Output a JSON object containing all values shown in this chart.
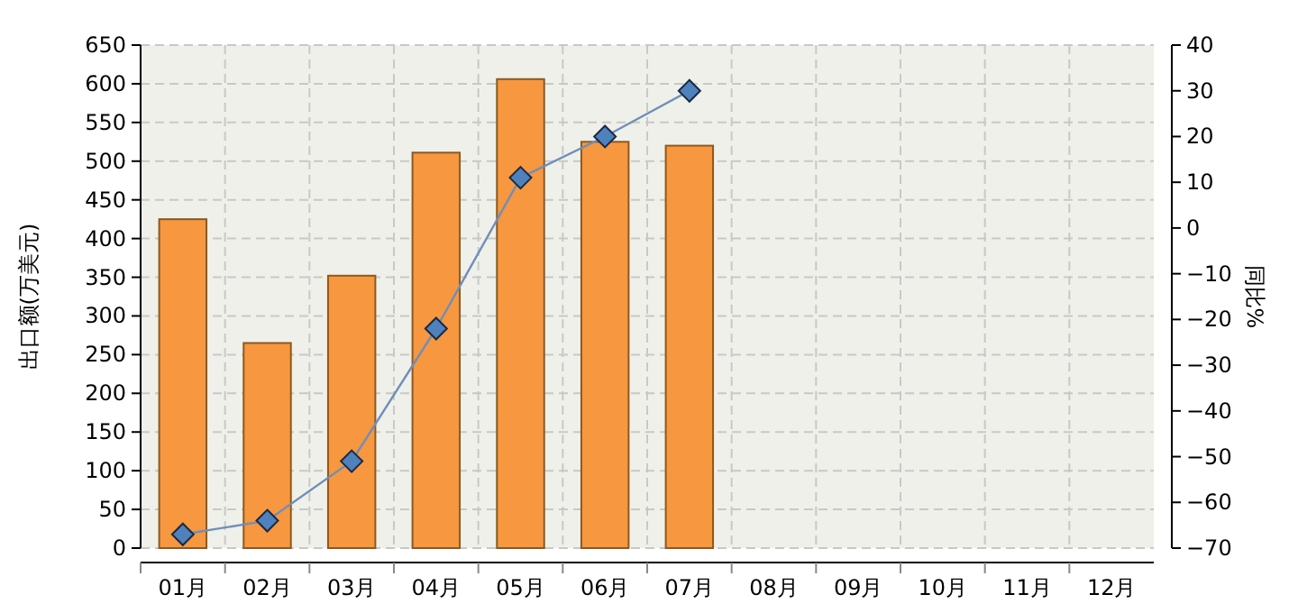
{
  "chart_data": {
    "type": "bar",
    "ylabel": "出口额(万美元)",
    "y2label": "同比%",
    "categories": [
      "01月",
      "02月",
      "03月",
      "04月",
      "05月",
      "06月",
      "07月",
      "08月",
      "09月",
      "10月",
      "11月",
      "12月"
    ],
    "series": [
      {
        "color": "#f7973f",
        "values": [
          425,
          265,
          352,
          511,
          606,
          525,
          520,
          null,
          null,
          null,
          null,
          null
        ]
      },
      {
        "type": "line",
        "axis": "y2",
        "color": "#6f8fb8",
        "marker": "diamond",
        "values": [
          -67,
          -64,
          -51,
          -22,
          11,
          20,
          30,
          null,
          null,
          null,
          null,
          null
        ]
      }
    ],
    "ylim": [
      0,
      650
    ],
    "yticks": [
      0,
      50,
      100,
      150,
      200,
      250,
      300,
      350,
      400,
      450,
      500,
      550,
      600,
      650
    ],
    "y2lim": [
      -70,
      40
    ],
    "y2ticks": [
      -70,
      -60,
      -50,
      -40,
      -30,
      -20,
      -10,
      0,
      10,
      20,
      30,
      40
    ],
    "grid": true
  }
}
